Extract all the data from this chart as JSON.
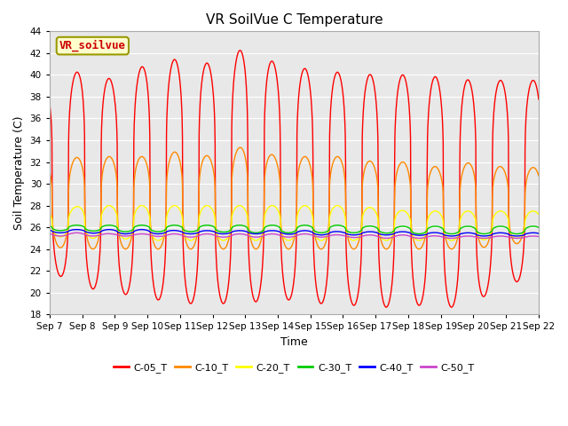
{
  "title": "VR SoilVue C Temperature",
  "ylabel": "Soil Temperature (C)",
  "xlabel": "Time",
  "ylim": [
    18,
    44
  ],
  "yticks": [
    18,
    20,
    22,
    24,
    26,
    28,
    30,
    32,
    34,
    36,
    38,
    40,
    42,
    44
  ],
  "xtick_labels": [
    "Sep 7",
    "Sep 8",
    "Sep 9",
    "Sep 10",
    "Sep 11",
    "Sep 12",
    "Sep 13",
    "Sep 14",
    "Sep 15",
    "Sep 16",
    "Sep 17",
    "Sep 18",
    "Sep 19",
    "Sep 20",
    "Sep 21",
    "Sep 22"
  ],
  "n_days": 15,
  "series": [
    {
      "label": "C-05_T",
      "color": "#ff0000",
      "day_max_values": [
        39,
        40.5,
        39.5,
        41,
        41.5,
        41,
        42.5,
        41,
        40.5,
        40.2,
        40,
        40,
        39.8,
        39.5,
        39.5
      ],
      "night_min_values": [
        22,
        20.5,
        20,
        19.5,
        19,
        19,
        19,
        19.5,
        19,
        19,
        18.5,
        19,
        18.5,
        19,
        21
      ],
      "peak_sharpness": 3.5
    },
    {
      "label": "C-10_T",
      "color": "#ff8800",
      "day_max_values": [
        32,
        32.5,
        32.5,
        32.5,
        33,
        32.5,
        33.5,
        32.5,
        32.5,
        32.5,
        32,
        32,
        31.5,
        32,
        31.5
      ],
      "night_min_values": [
        24.2,
        24.0,
        24.0,
        24.0,
        24.0,
        24.0,
        24.0,
        24.0,
        24.0,
        24.0,
        24.0,
        24.0,
        24.0,
        24.0,
        24.5
      ],
      "peak_sharpness": 3.0
    },
    {
      "label": "C-20_T",
      "color": "#ffff00",
      "day_max_values": [
        27.5,
        28,
        28,
        28,
        28,
        28,
        28,
        28,
        28,
        28,
        27.8,
        27.5,
        27.5,
        27.5,
        27.5
      ],
      "night_min_values": [
        25.2,
        25.0,
        25.0,
        24.8,
        24.8,
        24.8,
        24.8,
        24.8,
        24.8,
        24.8,
        24.8,
        24.8,
        24.8,
        24.8,
        25.0
      ],
      "peak_sharpness": 2.5
    },
    {
      "label": "C-30_T",
      "color": "#00cc00",
      "day_max_values": [
        26.2,
        26.2,
        26.2,
        26.2,
        26.2,
        26.2,
        26.2,
        26.2,
        26.2,
        26.2,
        26.1,
        26.1,
        26.1,
        26.1,
        26.1
      ],
      "night_min_values": [
        25.7,
        25.7,
        25.6,
        25.6,
        25.6,
        25.6,
        25.5,
        25.5,
        25.5,
        25.5,
        25.5,
        25.4,
        25.4,
        25.4,
        25.4
      ],
      "peak_sharpness": 2.0
    },
    {
      "label": "C-40_T",
      "color": "#0000ff",
      "day_max_values": [
        25.8,
        25.8,
        25.8,
        25.8,
        25.7,
        25.7,
        25.7,
        25.7,
        25.7,
        25.6,
        25.6,
        25.6,
        25.5,
        25.5,
        25.5
      ],
      "night_min_values": [
        25.5,
        25.5,
        25.4,
        25.4,
        25.4,
        25.4,
        25.4,
        25.4,
        25.3,
        25.3,
        25.3,
        25.3,
        25.2,
        25.2,
        25.2
      ],
      "peak_sharpness": 1.5
    },
    {
      "label": "C-50_T",
      "color": "#cc44cc",
      "day_max_values": [
        25.5,
        25.5,
        25.4,
        25.4,
        25.4,
        25.4,
        25.4,
        25.4,
        25.4,
        25.3,
        25.3,
        25.3,
        25.2,
        25.2,
        25.2
      ],
      "night_min_values": [
        25.2,
        25.2,
        25.2,
        25.2,
        25.1,
        25.1,
        25.1,
        25.1,
        25.1,
        25.1,
        25.0,
        25.0,
        25.0,
        25.0,
        25.0
      ],
      "peak_sharpness": 1.2
    }
  ],
  "fig_bg_color": "#ffffff",
  "plot_bg_color": "#e8e8e8",
  "grid_color": "#ffffff",
  "label_box_text": "VR_soilvue",
  "label_box_bg": "#ffffcc",
  "label_box_edge": "#999900",
  "title_fontsize": 11,
  "axis_label_fontsize": 9,
  "tick_fontsize": 7.5,
  "legend_fontsize": 8,
  "line_width": 1.0
}
